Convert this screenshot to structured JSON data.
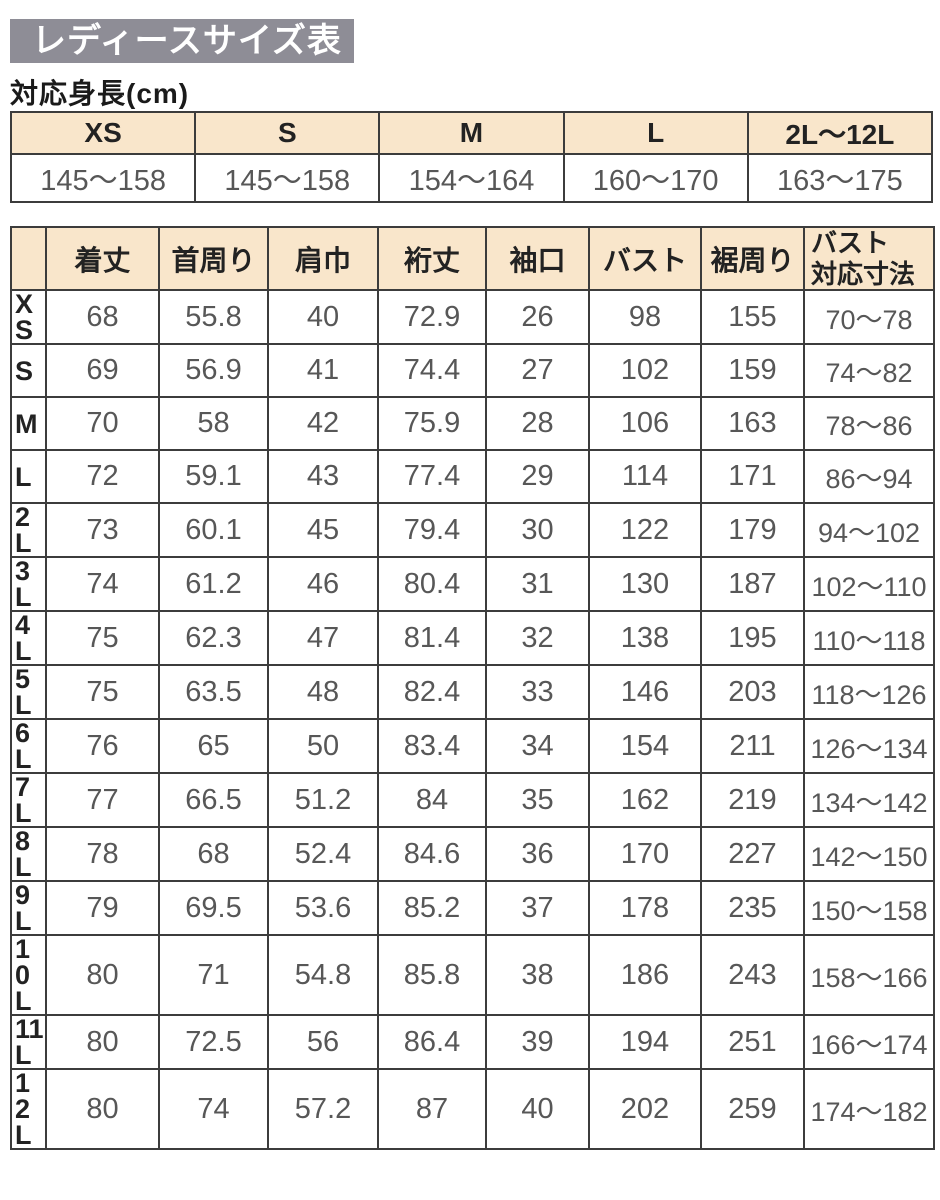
{
  "title": {
    "text": "レディースサイズ表"
  },
  "subtitle": "対応身長(cm)",
  "colors": {
    "title_bar_bg": "#8e8d96",
    "title_text": "#ffffff",
    "header_bg": "#f9e6cb",
    "border": "#3c3c3c",
    "value_text": "#575757",
    "label_text": "#222222"
  },
  "height_table": {
    "headers": [
      "XS",
      "S",
      "M",
      "L",
      "2L〜12L"
    ],
    "values": [
      "145〜158",
      "145〜158",
      "154〜164",
      "160〜170",
      "163〜175"
    ]
  },
  "size_table": {
    "corner": "",
    "headers": [
      "着丈",
      "首周り",
      "肩巾",
      "裄丈",
      "袖口",
      "バスト",
      "裾周り",
      "バスト\n対応寸法"
    ],
    "rows": [
      {
        "label": "XS",
        "values": [
          "68",
          "55.8",
          "40",
          "72.9",
          "26",
          "98",
          "155",
          "70〜78"
        ]
      },
      {
        "label": "S",
        "values": [
          "69",
          "56.9",
          "41",
          "74.4",
          "27",
          "102",
          "159",
          "74〜82"
        ]
      },
      {
        "label": "M",
        "values": [
          "70",
          "58",
          "42",
          "75.9",
          "28",
          "106",
          "163",
          "78〜86"
        ]
      },
      {
        "label": "L",
        "values": [
          "72",
          "59.1",
          "43",
          "77.4",
          "29",
          "114",
          "171",
          "86〜94"
        ]
      },
      {
        "label": "2L",
        "values": [
          "73",
          "60.1",
          "45",
          "79.4",
          "30",
          "122",
          "179",
          "94〜102"
        ]
      },
      {
        "label": "3L",
        "values": [
          "74",
          "61.2",
          "46",
          "80.4",
          "31",
          "130",
          "187",
          "102〜110"
        ]
      },
      {
        "label": "4L",
        "values": [
          "75",
          "62.3",
          "47",
          "81.4",
          "32",
          "138",
          "195",
          "110〜118"
        ]
      },
      {
        "label": "5L",
        "values": [
          "75",
          "63.5",
          "48",
          "82.4",
          "33",
          "146",
          "203",
          "118〜126"
        ]
      },
      {
        "label": "6L",
        "values": [
          "76",
          "65",
          "50",
          "83.4",
          "34",
          "154",
          "211",
          "126〜134"
        ]
      },
      {
        "label": "7L",
        "values": [
          "77",
          "66.5",
          "51.2",
          "84",
          "35",
          "162",
          "219",
          "134〜142"
        ]
      },
      {
        "label": "8L",
        "values": [
          "78",
          "68",
          "52.4",
          "84.6",
          "36",
          "170",
          "227",
          "142〜150"
        ]
      },
      {
        "label": "9L",
        "values": [
          "79",
          "69.5",
          "53.6",
          "85.2",
          "37",
          "178",
          "235",
          "150〜158"
        ]
      },
      {
        "label": "10L",
        "values": [
          "80",
          "71",
          "54.8",
          "85.8",
          "38",
          "186",
          "243",
          "158〜166"
        ]
      },
      {
        "label": "11L",
        "values": [
          "80",
          "72.5",
          "56",
          "86.4",
          "39",
          "194",
          "251",
          "166〜174"
        ]
      },
      {
        "label": "12L",
        "values": [
          "80",
          "74",
          "57.2",
          "87",
          "40",
          "202",
          "259",
          "174〜182"
        ]
      }
    ]
  }
}
